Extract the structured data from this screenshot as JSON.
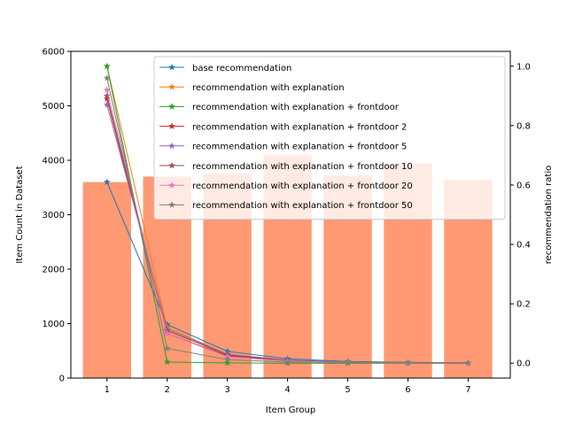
{
  "chart_data": {
    "type": "bar",
    "title": "",
    "xlabel": "Item Group",
    "ylabel": "Item Count in Dataset",
    "ylabel_right": "recommendation ratio",
    "categories": [
      1,
      2,
      3,
      4,
      5,
      6,
      7
    ],
    "xlim": [
      0.4,
      7.7
    ],
    "ylim": [
      0,
      6000
    ],
    "yticks": [
      0,
      1000,
      2000,
      3000,
      4000,
      5000,
      6000
    ],
    "ylim_right": [
      -0.05,
      1.05
    ],
    "yticks_right": [
      "0.0",
      "0.2",
      "0.4",
      "0.6",
      "0.8",
      "1.0"
    ],
    "bars": {
      "color": "#ff9973",
      "values": [
        3600,
        3700,
        3750,
        4100,
        3720,
        3940,
        3640
      ]
    },
    "grid": false,
    "legend_position": "top-right",
    "series": [
      {
        "name": "base recommendation",
        "color": "#1f77b4",
        "values": [
          0.61,
          0.13,
          0.04,
          0.015,
          0.006,
          0.003,
          0.001
        ]
      },
      {
        "name": "recommendation with explanation",
        "color": "#ff7f0e",
        "values": [
          1.0,
          0.12,
          0.03,
          0.01,
          0.004,
          0.002,
          0.001
        ]
      },
      {
        "name": "recommendation with explanation + frontdoor",
        "color": "#2ca02c",
        "values": [
          1.0,
          0.004,
          0.001,
          0.0,
          0.0,
          0.0,
          0.0
        ]
      },
      {
        "name": "recommendation with explanation + frontdoor 2",
        "color": "#d62728",
        "values": [
          0.89,
          0.1,
          0.025,
          0.008,
          0.003,
          0.001,
          0.0
        ]
      },
      {
        "name": "recommendation with explanation + frontdoor 5",
        "color": "#9467bd",
        "values": [
          0.87,
          0.115,
          0.03,
          0.01,
          0.004,
          0.002,
          0.001
        ]
      },
      {
        "name": "recommendation with explanation + frontdoor 10",
        "color": "#8c564b",
        "values": [
          0.9,
          0.11,
          0.028,
          0.009,
          0.004,
          0.002,
          0.001
        ]
      },
      {
        "name": "recommendation with explanation + frontdoor 20",
        "color": "#e377c2",
        "values": [
          0.92,
          0.1,
          0.022,
          0.007,
          0.003,
          0.001,
          0.0
        ]
      },
      {
        "name": "recommendation with explanation + frontdoor 50",
        "color": "#7f7f7f",
        "values": [
          0.96,
          0.05,
          0.012,
          0.004,
          0.002,
          0.001,
          0.0
        ]
      }
    ]
  }
}
